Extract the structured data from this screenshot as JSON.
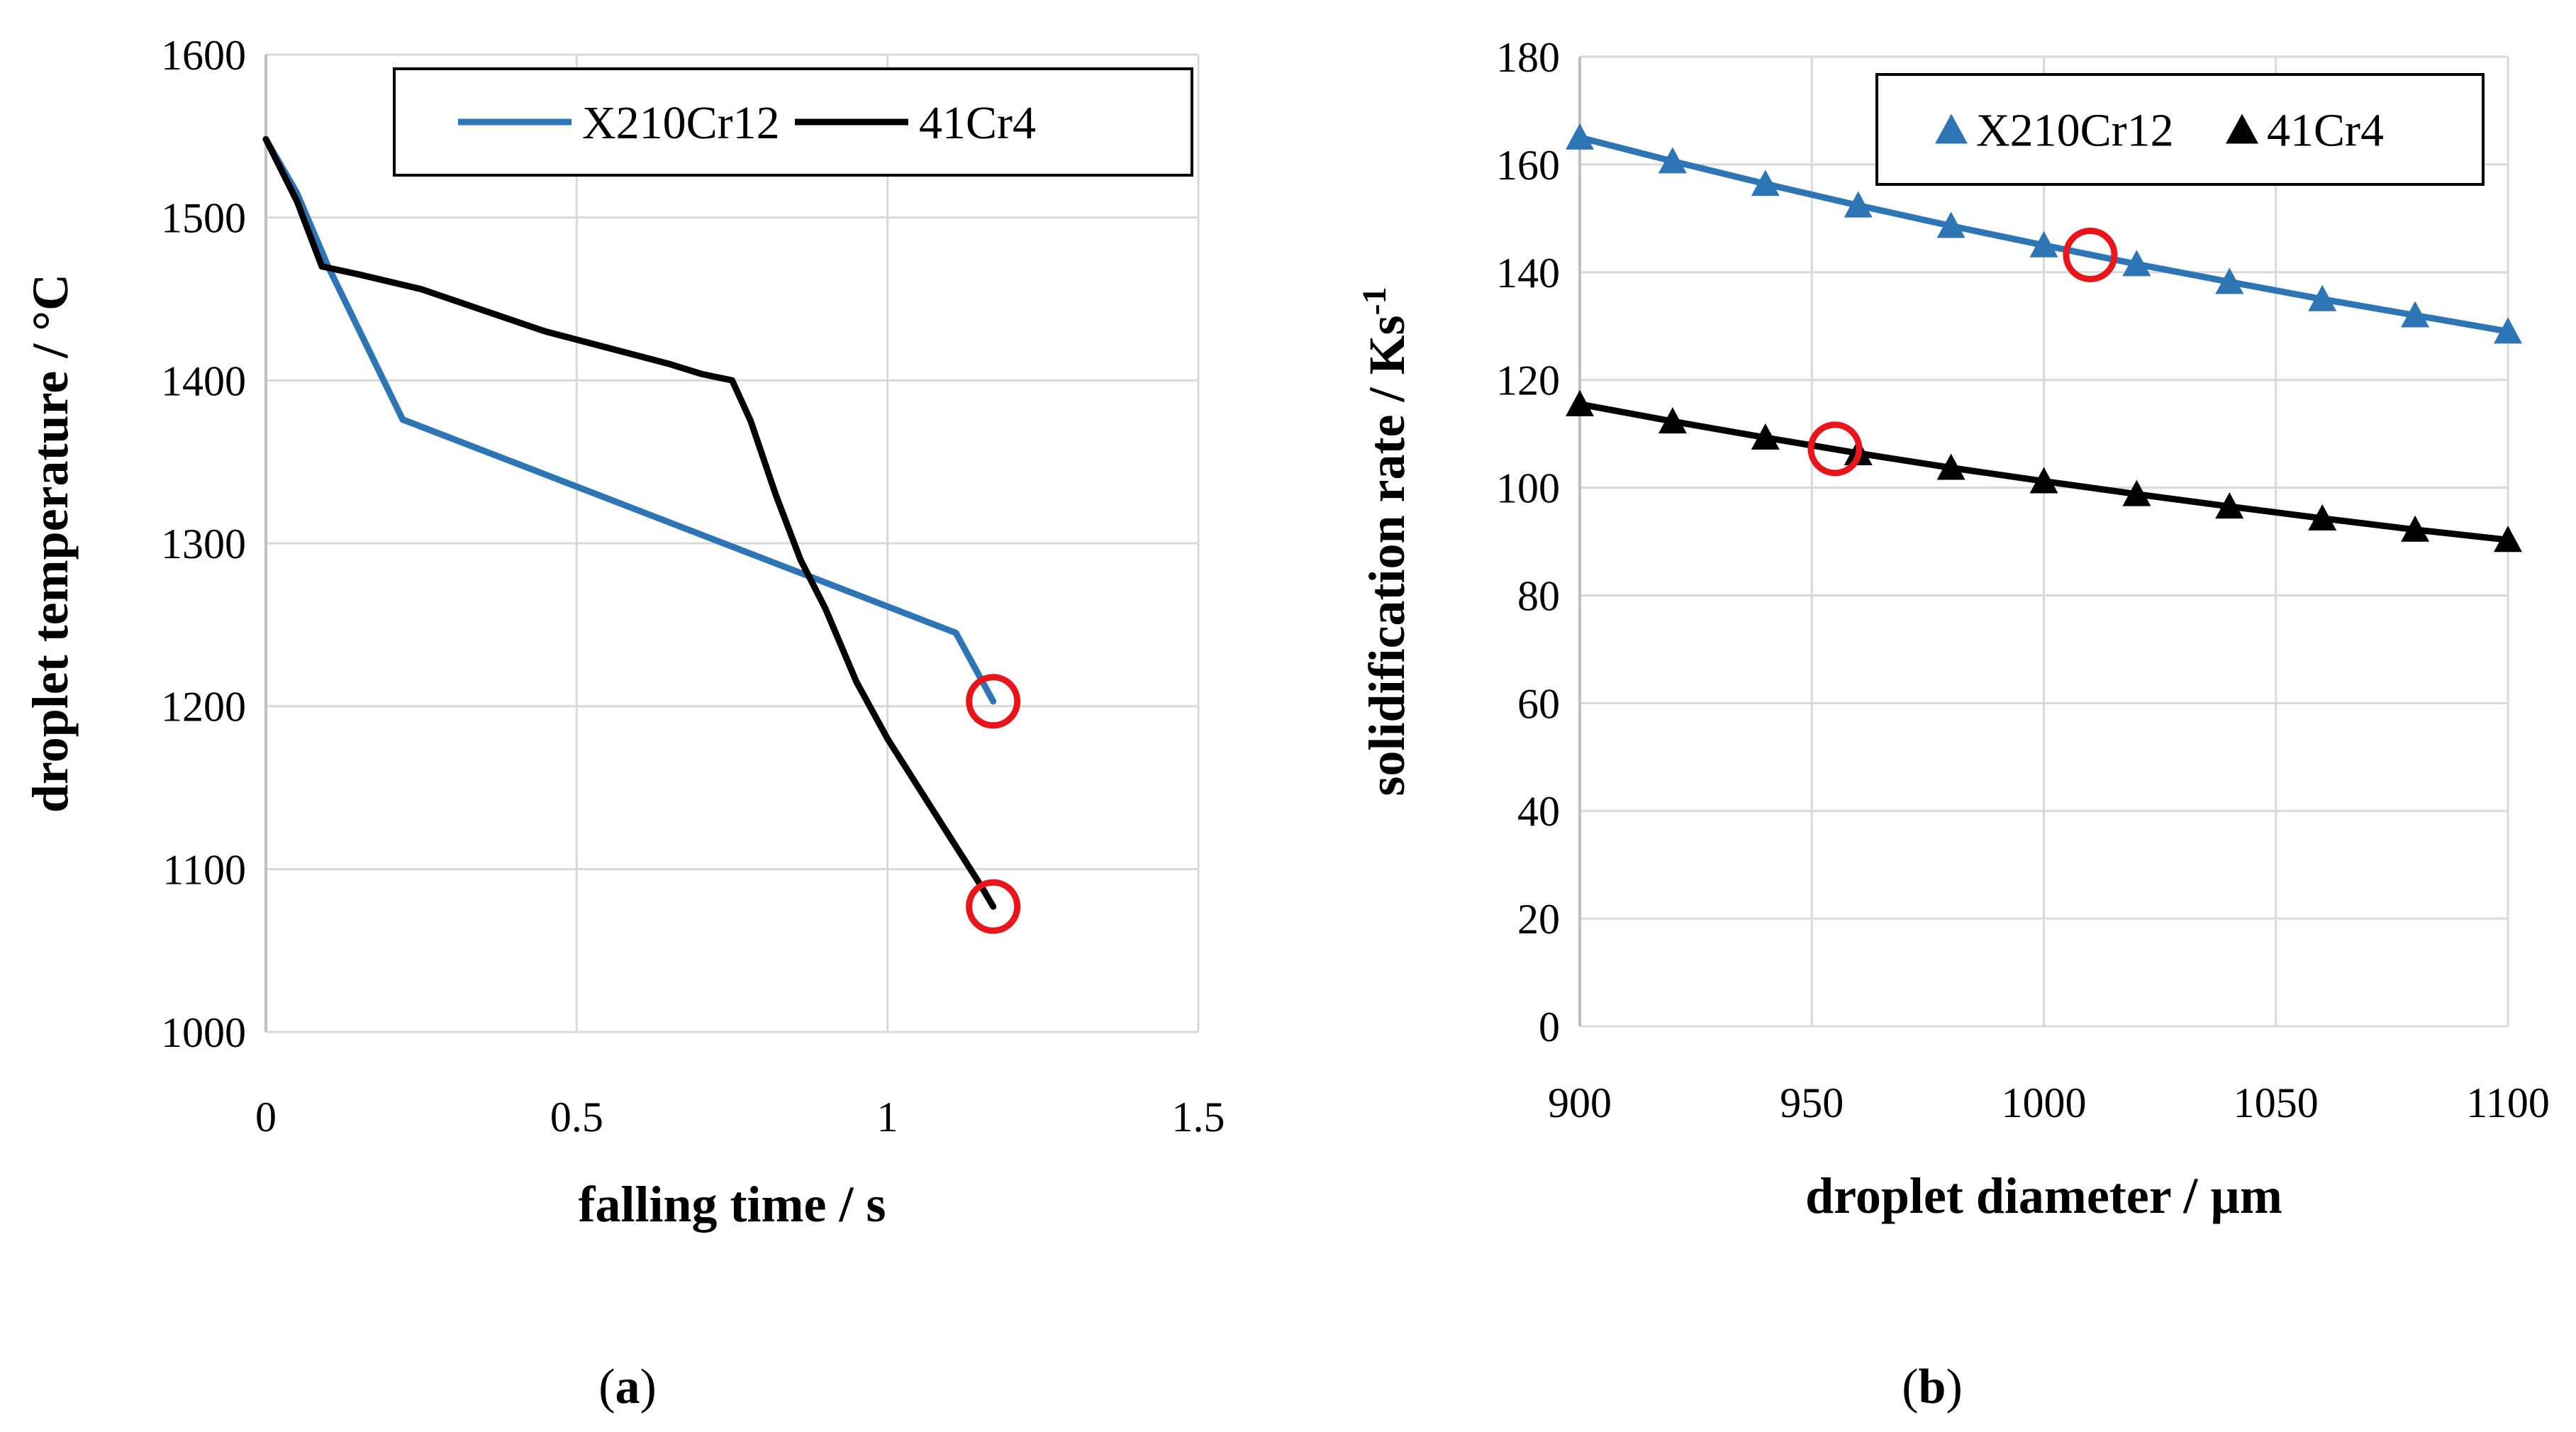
{
  "colors": {
    "x210": "#2E75B6",
    "cr41": "#000000",
    "highlight": "#E8151B",
    "grid": "#D9D9D9",
    "axis": "#BFBFBF"
  },
  "chart_data": [
    {
      "type": "line",
      "caption": "a",
      "xlabel": "falling time / s",
      "ylabel": "droplet temperature / °C",
      "xlim": [
        0,
        1.5
      ],
      "ylim": [
        1000,
        1600
      ],
      "xticks": [
        0,
        0.5,
        1,
        1.5
      ],
      "xtick_labels": [
        "0",
        "0.5",
        "1",
        "1.5"
      ],
      "yticks": [
        1000,
        1100,
        1200,
        1300,
        1400,
        1500,
        1600
      ],
      "ytick_labels": [
        "1000",
        "1100",
        "1200",
        "1300",
        "1400",
        "1500",
        "1600"
      ],
      "grid": "horizontal and vertical",
      "legend_position": "top-right",
      "series": [
        {
          "name": "X210Cr12",
          "color": "#2E75B6",
          "x": [
            0,
            0.05,
            0.1,
            0.22,
            1.11,
            1.17
          ],
          "y": [
            1548,
            1515,
            1470,
            1376,
            1245,
            1203
          ]
        },
        {
          "name": "41Cr4",
          "color": "#000000",
          "x": [
            0,
            0.05,
            0.09,
            0.15,
            0.25,
            0.35,
            0.45,
            0.55,
            0.65,
            0.7,
            0.75,
            0.78,
            0.82,
            0.86,
            0.9,
            0.95,
            1.0,
            1.05,
            1.1,
            1.15,
            1.17
          ],
          "y": [
            1548,
            1510,
            1470,
            1465,
            1456,
            1443,
            1430,
            1420,
            1410,
            1404,
            1400,
            1375,
            1330,
            1290,
            1260,
            1215,
            1180,
            1150,
            1120,
            1090,
            1077
          ]
        }
      ],
      "annotations": [
        {
          "type": "circle",
          "series": "X210Cr12",
          "x": 1.17,
          "y": 1203
        },
        {
          "type": "circle",
          "series": "41Cr4",
          "x": 1.17,
          "y": 1077
        }
      ]
    },
    {
      "type": "line",
      "caption": "b",
      "xlabel": "droplet diameter / µm",
      "ylabel": "solidification rate / Ks",
      "ylabel_superscript": "-1",
      "xlim": [
        900,
        1100
      ],
      "ylim": [
        0,
        180
      ],
      "xticks": [
        900,
        950,
        1000,
        1050,
        1100
      ],
      "xtick_labels": [
        "900",
        "950",
        "1000",
        "1050",
        "1100"
      ],
      "yticks": [
        0,
        20,
        40,
        60,
        80,
        100,
        120,
        140,
        160,
        180
      ],
      "ytick_labels": [
        "0",
        "20",
        "40",
        "60",
        "80",
        "100",
        "120",
        "140",
        "160",
        "180"
      ],
      "grid": "horizontal and vertical",
      "legend_position": "top-right",
      "series": [
        {
          "name": "X210Cr12",
          "color": "#2E75B6",
          "marker": "triangle",
          "x": [
            900,
            920,
            940,
            960,
            980,
            1000,
            1020,
            1040,
            1060,
            1080,
            1100
          ],
          "y": [
            165,
            160.6,
            156.4,
            152.4,
            148.6,
            145,
            141.5,
            138.2,
            135,
            132,
            129
          ]
        },
        {
          "name": "41Cr4",
          "color": "#000000",
          "marker": "triangle",
          "x": [
            900,
            920,
            940,
            960,
            980,
            1000,
            1020,
            1040,
            1060,
            1080,
            1100
          ],
          "y": [
            115.5,
            112.3,
            109.3,
            106.4,
            103.7,
            101.2,
            98.8,
            96.5,
            94.3,
            92.2,
            90.3
          ]
        }
      ],
      "annotations": [
        {
          "type": "circle",
          "series": "X210Cr12",
          "x": 1010,
          "y": 143.2
        },
        {
          "type": "circle",
          "series": "41Cr4",
          "x": 955,
          "y": 107.2
        }
      ]
    }
  ]
}
